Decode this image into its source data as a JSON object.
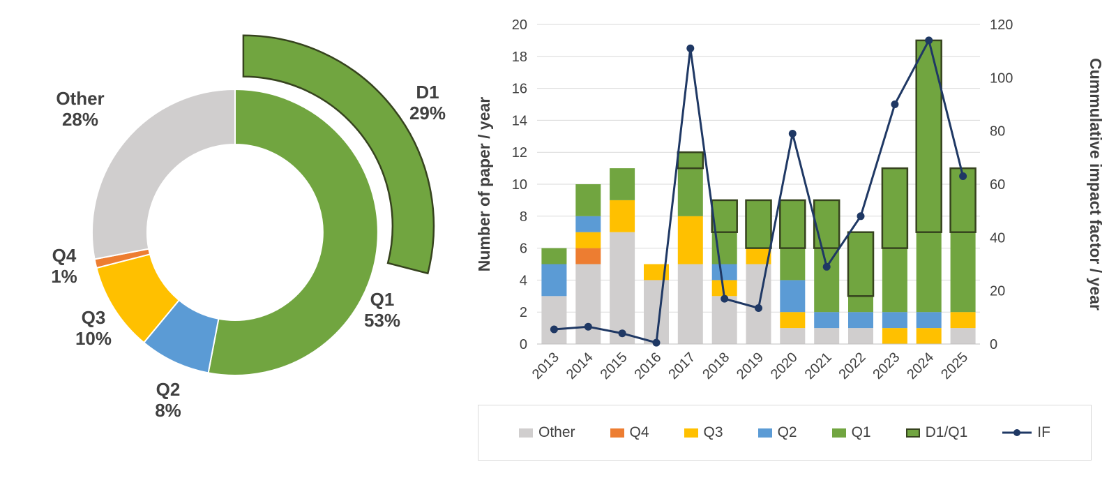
{
  "page": {
    "background": "#ffffff",
    "text_color": "#404040",
    "grid_color": "#d9d9d9"
  },
  "chart_data": [
    {
      "type": "donut",
      "direction": "clockwise",
      "start_angle_deg": 0,
      "slices": [
        {
          "label": "Q1",
          "pct": 53,
          "color": "#71A540"
        },
        {
          "label": "Q2",
          "pct": 8,
          "color": "#5B9BD5"
        },
        {
          "label": "Q3",
          "pct": 10,
          "color": "#FFC000"
        },
        {
          "label": "Q4",
          "pct": 1,
          "color": "#ED7D31"
        },
        {
          "label": "Other",
          "pct": 28,
          "color": "#D0CECE"
        }
      ],
      "highlight": {
        "label": "D1",
        "pct": 29,
        "color": "#71A540",
        "outline": "#36431E"
      }
    },
    {
      "type": "stacked-bar-line",
      "categories": [
        2013,
        2014,
        2015,
        2016,
        2017,
        2018,
        2019,
        2020,
        2021,
        2022,
        2023,
        2024,
        2025
      ],
      "series": [
        {
          "name": "Other",
          "color": "#D0CECE",
          "values": [
            3,
            5,
            7,
            4,
            5,
            3,
            5,
            1,
            1,
            1,
            0,
            0,
            1
          ]
        },
        {
          "name": "Q4",
          "color": "#ED7D31",
          "values": [
            0,
            1,
            0,
            0,
            0,
            0,
            0,
            0,
            0,
            0,
            0,
            0,
            0
          ]
        },
        {
          "name": "Q3",
          "color": "#FFC000",
          "values": [
            0,
            1,
            2,
            1,
            3,
            1,
            1,
            1,
            0,
            0,
            1,
            1,
            1
          ]
        },
        {
          "name": "Q2",
          "color": "#5B9BD5",
          "values": [
            2,
            1,
            0,
            0,
            0,
            1,
            0,
            2,
            1,
            1,
            1,
            1,
            0
          ]
        },
        {
          "name": "Q1",
          "color": "#71A540",
          "values": [
            1,
            2,
            2,
            0,
            4,
            4,
            3,
            5,
            7,
            5,
            9,
            17,
            9
          ]
        }
      ],
      "d1_overlay": {
        "name": "D1/Q1",
        "color": "#71A540",
        "outline": "#36431E",
        "values": [
          0,
          0,
          0,
          0,
          1,
          2,
          3,
          3,
          3,
          4,
          5,
          12,
          4
        ]
      },
      "line": {
        "name": "IF",
        "color": "#1F3864",
        "values": [
          5.5,
          6.5,
          4,
          0.5,
          111,
          17,
          13.5,
          79,
          29,
          48,
          90,
          114,
          63
        ]
      },
      "left_axis": {
        "title": "Number of paper / year",
        "min": 0,
        "max": 20,
        "step": 2
      },
      "right_axis": {
        "title": "Cummulative impact factor / year",
        "min": 0,
        "max": 120,
        "step": 20
      },
      "legend": [
        "Other",
        "Q4",
        "Q3",
        "Q2",
        "Q1",
        "D1/Q1",
        "IF"
      ],
      "grid": true,
      "legend_position": "bottom"
    }
  ]
}
